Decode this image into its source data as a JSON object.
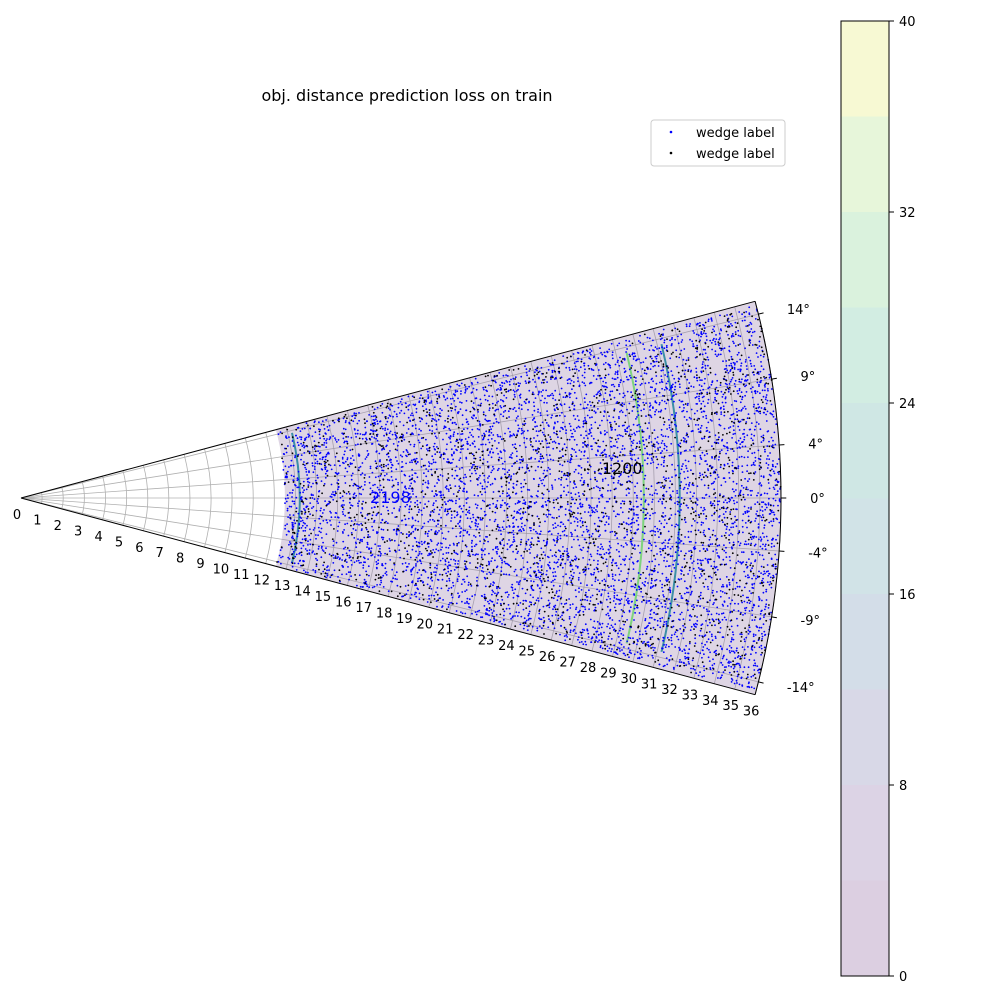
{
  "chart_data": {
    "type": "scatter",
    "projection": "polar-wedge",
    "title": "obj. distance prediction loss on train",
    "r_ticks": [
      "0",
      "1",
      "2",
      "3",
      "4",
      "5",
      "6",
      "7",
      "8",
      "9",
      "10",
      "11",
      "12",
      "13",
      "14",
      "15",
      "16",
      "17",
      "18",
      "19",
      "20",
      "21",
      "22",
      "23",
      "24",
      "25",
      "26",
      "27",
      "28",
      "29",
      "30",
      "31",
      "32",
      "33",
      "34",
      "35",
      "36"
    ],
    "theta_ticks": [
      "14°",
      "9°",
      "4°",
      "0°",
      "-4°",
      "-9°",
      "-14°"
    ],
    "theta_tick_values": [
      14,
      9,
      4,
      0,
      -4,
      -9,
      -14
    ],
    "r_lim": [
      0,
      36
    ],
    "theta_lim": [
      -15,
      15
    ],
    "data_region": {
      "r_min": 12.5,
      "r_max": 36,
      "theta_min": -15,
      "theta_max": 15
    },
    "series": [
      {
        "name": "wedge label",
        "color": "#0000ff",
        "marker": "dot",
        "approx_points": 6000
      },
      {
        "name": "wedge label",
        "color": "#000000",
        "marker": "dot",
        "approx_points": 1500
      }
    ],
    "contours": [
      {
        "r": 13.2,
        "color": "#3b8fa6"
      },
      {
        "r": 29.5,
        "color": "#7ed37e"
      },
      {
        "r": 31.2,
        "color": "#3b8fa6"
      }
    ],
    "annotations": [
      {
        "text": "2198",
        "r": 17.5,
        "theta": -0.8,
        "color": "#0000ff"
      },
      {
        "text": "1200",
        "r": 28.5,
        "theta": 2.3,
        "color": "#000000"
      }
    ],
    "colorbar": {
      "min": 0,
      "max": 40,
      "ticks": [
        "0",
        "8",
        "16",
        "24",
        "32",
        "40"
      ],
      "tick_values": [
        0,
        8,
        16,
        24,
        32,
        40
      ],
      "levels": [
        0,
        4,
        8,
        12,
        16,
        20,
        24,
        28,
        32,
        36,
        40
      ],
      "level_colors": [
        "#dccfe1",
        "#dcd3e5",
        "#d8d8e7",
        "#d3dde8",
        "#d1e3e7",
        "#cfe7e4",
        "#d2ede2",
        "#daf2dd",
        "#e7f6da",
        "#f7f9d3"
      ],
      "wedge_fill_color": "#dcd3e3"
    },
    "legend_position": "upper-right",
    "grid": true
  }
}
